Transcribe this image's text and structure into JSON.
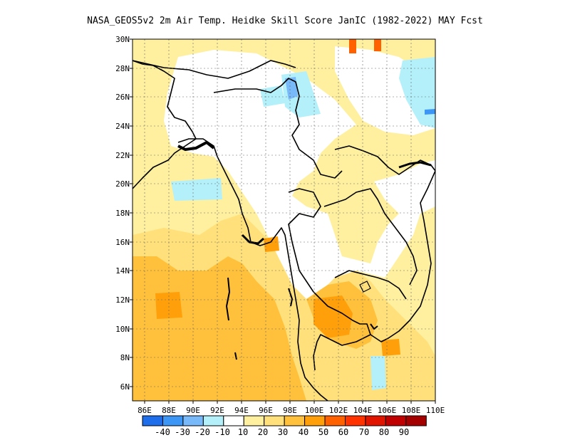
{
  "title": "NASA_GEOS5v2  2m Air Temp. Heidke Skill Score JanIC (1982-2022) MAY Fcst",
  "map": {
    "lon_range": [
      85,
      110
    ],
    "lat_range": [
      5,
      30
    ],
    "x_ticks": [
      "86E",
      "88E",
      "90E",
      "92E",
      "94E",
      "96E",
      "98E",
      "100E",
      "102E",
      "104E",
      "106E",
      "108E",
      "110E"
    ],
    "y_ticks": [
      "6N",
      "8N",
      "10N",
      "12N",
      "14N",
      "16N",
      "18N",
      "20N",
      "22N",
      "24N",
      "26N",
      "28N",
      "30N"
    ],
    "gridlines": true
  },
  "colorbar": {
    "labels": [
      "-40",
      "-30",
      "-20",
      "-10",
      "10",
      "20",
      "30",
      "40",
      "50",
      "60",
      "70",
      "80",
      "90"
    ],
    "colors": [
      "#1e6eeb",
      "#3c96f5",
      "#78b9fa",
      "#b4f0fa",
      "#ffffff",
      "#fff0a0",
      "#ffe07a",
      "#ffc03c",
      "#ffa00a",
      "#ff6000",
      "#ff3200",
      "#e11400",
      "#c00000",
      "#a50000"
    ]
  }
}
